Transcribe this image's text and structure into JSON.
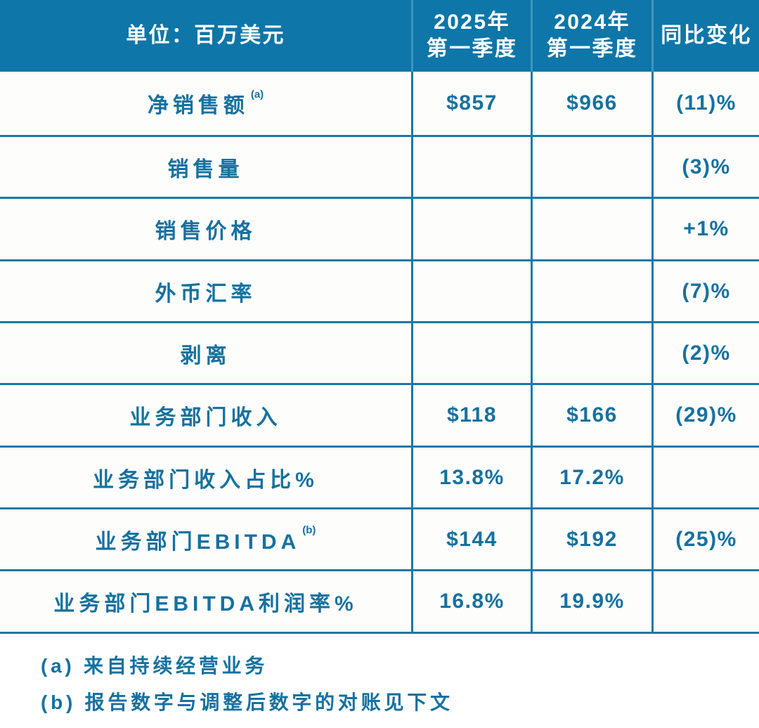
{
  "colors": {
    "header_bg": "#0e76a8",
    "border": "#1879a5",
    "text": "#15719f",
    "row_bg": "#fdfdfc"
  },
  "header": {
    "unit_label": "单位：百万美元",
    "col_2025_line1": "2025年",
    "col_2025_line2": "第一季度",
    "col_2024_line1": "2024年",
    "col_2024_line2": "第一季度",
    "yoy_label": "同比变化"
  },
  "rows": [
    {
      "label": "净销售额",
      "sup": "(a)",
      "q1_2025": "$857",
      "q1_2024": "$966",
      "yoy": "(11)%"
    },
    {
      "label": "销售量",
      "sup": "",
      "q1_2025": "",
      "q1_2024": "",
      "yoy": "(3)%"
    },
    {
      "label": "销售价格",
      "sup": "",
      "q1_2025": "",
      "q1_2024": "",
      "yoy": "+1%"
    },
    {
      "label": "外币汇率",
      "sup": "",
      "q1_2025": "",
      "q1_2024": "",
      "yoy": "(7)%"
    },
    {
      "label": "剥离",
      "sup": "",
      "q1_2025": "",
      "q1_2024": "",
      "yoy": "(2)%"
    },
    {
      "label": "业务部门收入",
      "sup": "",
      "q1_2025": "$118",
      "q1_2024": "$166",
      "yoy": "(29)%"
    },
    {
      "label": "业务部门收入占比%",
      "sup": "",
      "q1_2025": "13.8%",
      "q1_2024": "17.2%",
      "yoy": ""
    },
    {
      "label": "业务部门EBITDA",
      "sup": "(b)",
      "q1_2025": "$144",
      "q1_2024": "$192",
      "yoy": "(25)%"
    },
    {
      "label": "业务部门EBITDA利润率%",
      "sup": "",
      "q1_2025": "16.8%",
      "q1_2024": "19.9%",
      "yoy": ""
    }
  ],
  "footnotes": [
    "(a) 来自持续经营业务",
    "(b) 报告数字与调整后数字的对账见下文"
  ]
}
